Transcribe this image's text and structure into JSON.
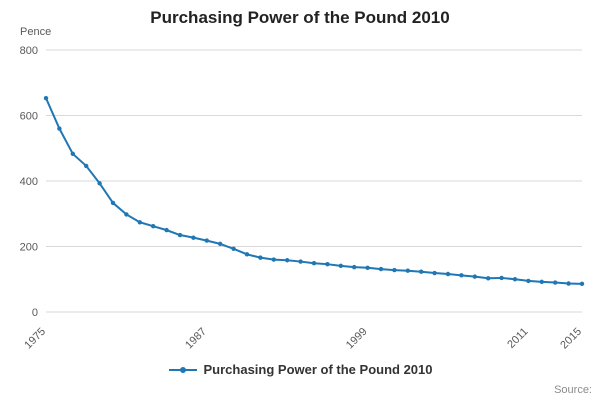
{
  "title": "Purchasing Power of the Pound 2010",
  "y_axis_unit": "Pence",
  "source_label": "Source:",
  "legend": {
    "label": "Purchasing Power of the Pound 2010"
  },
  "colors": {
    "line": "#1f77b4",
    "grid": "#d9d9d9",
    "axis_text": "#595959"
  },
  "chart_data": {
    "type": "line",
    "title": "Purchasing Power of the Pound 2010",
    "xlabel": "",
    "ylabel": "Pence",
    "ylim": [
      0,
      800
    ],
    "xlim": [
      1975,
      2015
    ],
    "y_ticks": [
      0,
      200,
      400,
      600,
      800
    ],
    "x_ticks": [
      1975,
      1987,
      1999,
      2011,
      2015
    ],
    "grid": true,
    "legend_position": "bottom",
    "x": [
      1975,
      1976,
      1977,
      1978,
      1979,
      1980,
      1981,
      1982,
      1983,
      1984,
      1985,
      1986,
      1987,
      1988,
      1989,
      1990,
      1991,
      1992,
      1993,
      1994,
      1995,
      1996,
      1997,
      1998,
      1999,
      2000,
      2001,
      2002,
      2003,
      2004,
      2005,
      2006,
      2007,
      2008,
      2009,
      2010,
      2011,
      2012,
      2013,
      2014,
      2015
    ],
    "values": [
      653,
      560,
      483,
      446,
      393,
      333,
      298,
      274,
      262,
      250,
      235,
      227,
      218,
      208,
      193,
      176,
      166,
      160,
      158,
      154,
      149,
      146,
      141,
      137,
      135,
      131,
      128,
      126,
      123,
      119,
      116,
      112,
      108,
      103,
      104,
      100,
      95,
      92,
      90,
      87,
      86
    ]
  }
}
